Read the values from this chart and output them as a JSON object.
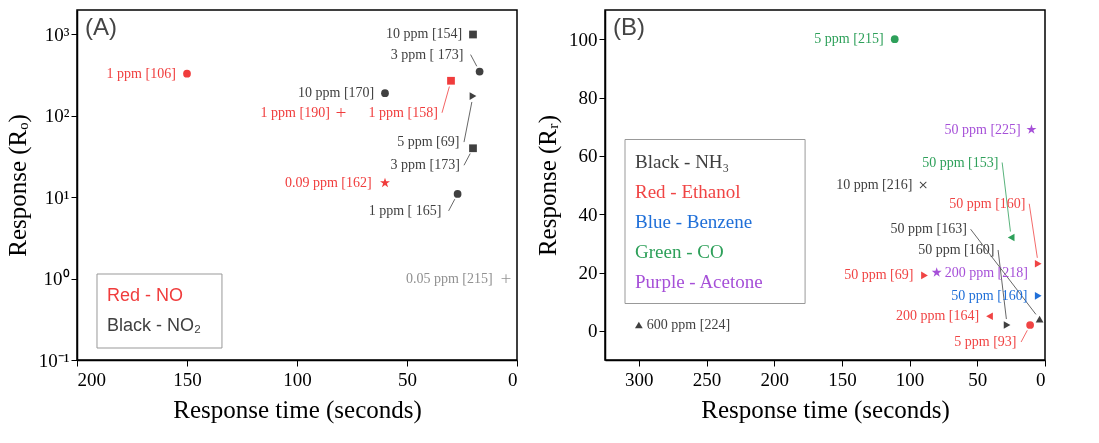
{
  "chart_data": [
    {
      "type": "scatter",
      "title": "(A)",
      "xlabel": "Response time (seconds)",
      "ylabel": "Response (Rₒ)",
      "log": "y",
      "legend": "bottom left",
      "xlim": [
        200,
        0
      ],
      "xticks": [
        200,
        150,
        100,
        50,
        0
      ],
      "ylim": [
        0.1,
        2000
      ],
      "yticks": [
        {
          "value": 0.1,
          "label": "10⁻¹"
        },
        {
          "value": 1,
          "label": "10⁰"
        },
        {
          "value": 10,
          "label": "10¹"
        },
        {
          "value": 100,
          "label": "10²"
        },
        {
          "value": 1000,
          "label": "10³"
        }
      ],
      "series": [
        {
          "name": "Red - NO",
          "color": "#f03c3c",
          "marker": "circle",
          "x": [
            150
          ],
          "values": [
            330
          ]
        },
        {
          "color": "#f03c3c",
          "marker": "square",
          "x": [
            30
          ],
          "values": [
            270
          ]
        },
        {
          "color": "#f03c3c",
          "marker": "plus",
          "x": [
            80
          ],
          "values": [
            110
          ]
        },
        {
          "color": "#f03c3c",
          "marker": "star",
          "x": [
            60
          ],
          "values": [
            15
          ]
        },
        {
          "name": "Black - NO₂",
          "color": "#404040",
          "marker": "square",
          "x": [
            20,
            20
          ],
          "values": [
            1000,
            40
          ]
        },
        {
          "color": "#404040",
          "marker": "circle",
          "x": [
            17,
            60,
            27
          ],
          "values": [
            350,
            190,
            11
          ]
        },
        {
          "color": "#404040",
          "marker": "triangle-right",
          "x": [
            20
          ],
          "values": [
            175
          ]
        },
        {
          "color": "#909090",
          "marker": "plus",
          "x": [
            5
          ],
          "values": [
            1
          ]
        }
      ],
      "annotations": [
        {
          "text": "10 ppm [154]",
          "x": 20,
          "y": 1000
        },
        {
          "text": "3 ppm [ 173]",
          "x": 17,
          "y": 350
        },
        {
          "text": "1 ppm [106]",
          "x": 150,
          "y": 330
        },
        {
          "text": "1 ppm [158]",
          "x": 30,
          "y": 270
        },
        {
          "text": "10 ppm [170]",
          "x": 60,
          "y": 190
        },
        {
          "text": "5 ppm [69]",
          "x": 20,
          "y": 175
        },
        {
          "text": "1 ppm [190]",
          "x": 80,
          "y": 110
        },
        {
          "text": "3 ppm [173]",
          "x": 20,
          "y": 40
        },
        {
          "text": "0.09 ppm [162]",
          "x": 60,
          "y": 15
        },
        {
          "text": "1 ppm [ 165]",
          "x": 27,
          "y": 11
        },
        {
          "text": "0.05 ppm [215]",
          "x": 5,
          "y": 1
        }
      ]
    },
    {
      "type": "scatter",
      "title": "(B)",
      "xlabel": "Response time (seconds)",
      "ylabel": "Response (Rᵣ)",
      "legend": "left",
      "xlim": [
        325,
        0
      ],
      "xticks": [
        300,
        250,
        200,
        150,
        100,
        50,
        0
      ],
      "ylim": [
        -10,
        110
      ],
      "yticks": [
        0,
        20,
        40,
        60,
        80,
        100
      ],
      "series": [
        {
          "name": "Black - NH₃",
          "color": "#404040",
          "marker": "triangle",
          "x": [
            300,
            4
          ],
          "values": [
            2,
            4
          ]
        },
        {
          "color": "#404040",
          "marker": "cross",
          "x": [
            90
          ],
          "values": [
            50
          ]
        },
        {
          "color": "#404040",
          "marker": "triangle-right",
          "x": [
            28
          ],
          "values": [
            2
          ]
        },
        {
          "name": "Red - Ethanol",
          "color": "#f04444",
          "marker": "triangle-right",
          "x": [
            5,
            89
          ],
          "values": [
            23,
            19
          ]
        },
        {
          "color": "#f04444",
          "marker": "triangle-left",
          "x": [
            41
          ],
          "values": [
            5
          ]
        },
        {
          "color": "#f04444",
          "marker": "circle",
          "x": [
            11
          ],
          "values": [
            2
          ]
        },
        {
          "name": "Blue - Benzene",
          "color": "#1f6fd8",
          "marker": "triangle-right",
          "x": [
            5
          ],
          "values": [
            12
          ]
        },
        {
          "name": "Green - CO",
          "color": "#2ea05a",
          "marker": "circle",
          "x": [
            111
          ],
          "values": [
            100
          ]
        },
        {
          "color": "#2ea05a",
          "marker": "triangle-left",
          "x": [
            25
          ],
          "values": [
            32
          ]
        },
        {
          "name": "Purple - Acetone",
          "color": "#a650d8",
          "marker": "star",
          "x": [
            10,
            80
          ],
          "values": [
            69,
            20
          ]
        }
      ],
      "annotations": [
        {
          "text": "5 ppm [215]",
          "x": 111,
          "y": 100
        },
        {
          "text": "50 ppm [225]",
          "x": 10,
          "y": 69
        },
        {
          "text": "10 ppm [216]",
          "x": 90,
          "y": 50
        },
        {
          "text": "600 ppm [224]",
          "x": 300,
          "y": 2
        },
        {
          "text": "50 ppm [160]",
          "x": 5,
          "y": 23
        },
        {
          "text": "50 ppm [160]",
          "x": 5,
          "y": 12
        },
        {
          "text": "50 ppm [163]",
          "x": 4,
          "y": 4
        },
        {
          "text": "5 ppm [93]",
          "x": 11,
          "y": 2
        },
        {
          "text": "50 ppm [160]",
          "x": 28,
          "y": 2
        },
        {
          "text": "200 ppm [164]",
          "x": 41,
          "y": 5
        },
        {
          "text": "50 ppm [153]",
          "x": 25,
          "y": 32
        },
        {
          "text": "200 ppm [218]",
          "x": 80,
          "y": 20
        },
        {
          "text": "50 ppm [69]",
          "x": 89,
          "y": 19
        }
      ]
    }
  ]
}
